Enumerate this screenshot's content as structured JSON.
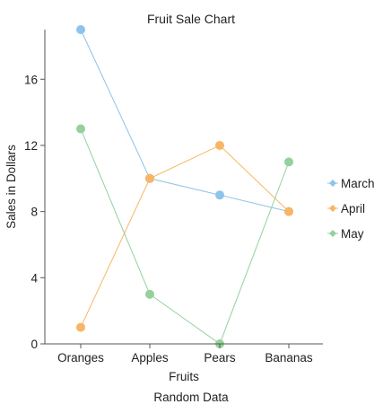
{
  "chart_data": {
    "type": "line",
    "title": "Fruit Sale Chart",
    "subtitle": "Random Data",
    "xlabel": "Fruits",
    "ylabel": "Sales in Dollars",
    "categories": [
      "Oranges",
      "Apples",
      "Pears",
      "Bananas"
    ],
    "ylim": [
      0,
      19
    ],
    "yticks": [
      0,
      4,
      8,
      12,
      16
    ],
    "grid": false,
    "legend_position": "right",
    "series": [
      {
        "name": "March",
        "values": [
          19,
          10,
          9,
          8
        ],
        "color": "#8ec3ea"
      },
      {
        "name": "April",
        "values": [
          1,
          10,
          12,
          8
        ],
        "color": "#f8b665"
      },
      {
        "name": "May",
        "values": [
          13,
          3,
          0,
          11
        ],
        "color": "#94d19c"
      }
    ]
  }
}
